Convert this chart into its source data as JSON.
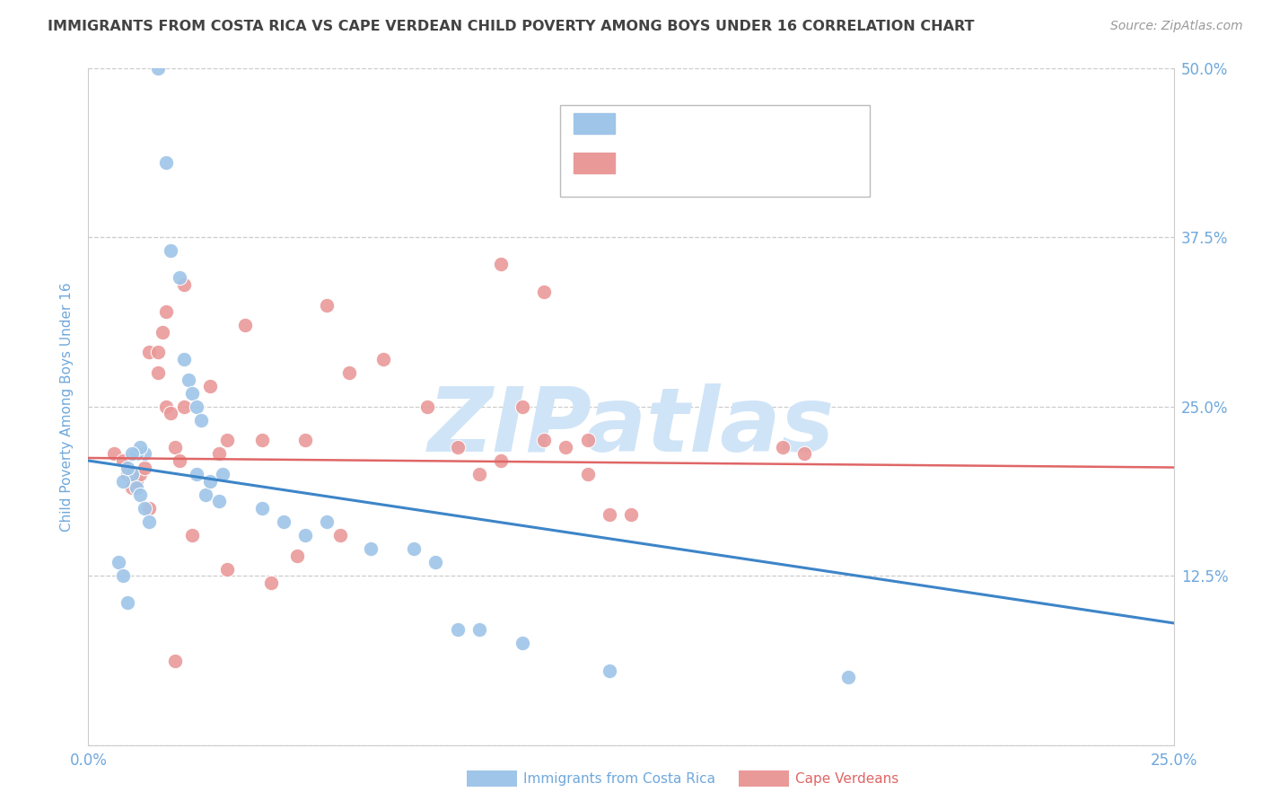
{
  "title": "IMMIGRANTS FROM COSTA RICA VS CAPE VERDEAN CHILD POVERTY AMONG BOYS UNDER 16 CORRELATION CHART",
  "source": "Source: ZipAtlas.com",
  "ylabel": "Child Poverty Among Boys Under 16",
  "watermark": "ZIPatlas",
  "legend_blue_label": "Immigrants from Costa Rica",
  "legend_pink_label": "Cape Verdeans",
  "xlim": [
    0.0,
    0.25
  ],
  "ylim": [
    0.0,
    0.5
  ],
  "x_ticks": [
    0.0,
    0.05,
    0.1,
    0.15,
    0.2,
    0.25
  ],
  "x_tick_labels": [
    "0.0%",
    "",
    "",
    "",
    "",
    "25.0%"
  ],
  "y_ticks": [
    0.0,
    0.125,
    0.25,
    0.375,
    0.5
  ],
  "y_tick_labels": [
    "",
    "12.5%",
    "25.0%",
    "37.5%",
    "50.0%"
  ],
  "blue_scatter_x": [
    0.013,
    0.016,
    0.018,
    0.019,
    0.021,
    0.022,
    0.023,
    0.024,
    0.025,
    0.026,
    0.01,
    0.011,
    0.012,
    0.008,
    0.009,
    0.01,
    0.011,
    0.012,
    0.013,
    0.014,
    0.025,
    0.027,
    0.028,
    0.03,
    0.04,
    0.045,
    0.05,
    0.055,
    0.065,
    0.075,
    0.08,
    0.085,
    0.09,
    0.1,
    0.12,
    0.175,
    0.007,
    0.008,
    0.009,
    0.031
  ],
  "blue_scatter_y": [
    0.215,
    0.5,
    0.43,
    0.365,
    0.345,
    0.285,
    0.27,
    0.26,
    0.25,
    0.24,
    0.2,
    0.215,
    0.22,
    0.195,
    0.205,
    0.215,
    0.19,
    0.185,
    0.175,
    0.165,
    0.2,
    0.185,
    0.195,
    0.18,
    0.175,
    0.165,
    0.155,
    0.165,
    0.145,
    0.145,
    0.135,
    0.085,
    0.085,
    0.075,
    0.055,
    0.05,
    0.135,
    0.125,
    0.105,
    0.2
  ],
  "pink_scatter_x": [
    0.006,
    0.008,
    0.009,
    0.01,
    0.011,
    0.012,
    0.013,
    0.014,
    0.016,
    0.017,
    0.018,
    0.019,
    0.02,
    0.021,
    0.022,
    0.016,
    0.018,
    0.022,
    0.028,
    0.032,
    0.036,
    0.04,
    0.05,
    0.055,
    0.06,
    0.068,
    0.078,
    0.085,
    0.09,
    0.095,
    0.1,
    0.105,
    0.11,
    0.115,
    0.12,
    0.125,
    0.16,
    0.165,
    0.095,
    0.105,
    0.115,
    0.058,
    0.014,
    0.02,
    0.024,
    0.032,
    0.042,
    0.048,
    0.03
  ],
  "pink_scatter_y": [
    0.215,
    0.21,
    0.2,
    0.19,
    0.195,
    0.2,
    0.205,
    0.29,
    0.29,
    0.305,
    0.25,
    0.245,
    0.22,
    0.21,
    0.25,
    0.275,
    0.32,
    0.34,
    0.265,
    0.225,
    0.31,
    0.225,
    0.225,
    0.325,
    0.275,
    0.285,
    0.25,
    0.22,
    0.2,
    0.21,
    0.25,
    0.225,
    0.22,
    0.2,
    0.17,
    0.17,
    0.22,
    0.215,
    0.355,
    0.335,
    0.225,
    0.155,
    0.175,
    0.062,
    0.155,
    0.13,
    0.12,
    0.14,
    0.215
  ],
  "blue_line_x": [
    0.0,
    0.25
  ],
  "blue_line_y": [
    0.21,
    0.09
  ],
  "pink_line_x": [
    0.0,
    0.25
  ],
  "pink_line_y": [
    0.212,
    0.205
  ],
  "blue_color": "#9fc5e8",
  "pink_color": "#ea9999",
  "blue_line_color": "#3d85c8",
  "pink_line_color": "#e06666",
  "background_color": "#ffffff",
  "grid_color": "#cccccc",
  "title_color": "#434343",
  "axis_color": "#6fa8dc",
  "watermark_color": "#d0e4f7",
  "source_color": "#999999"
}
